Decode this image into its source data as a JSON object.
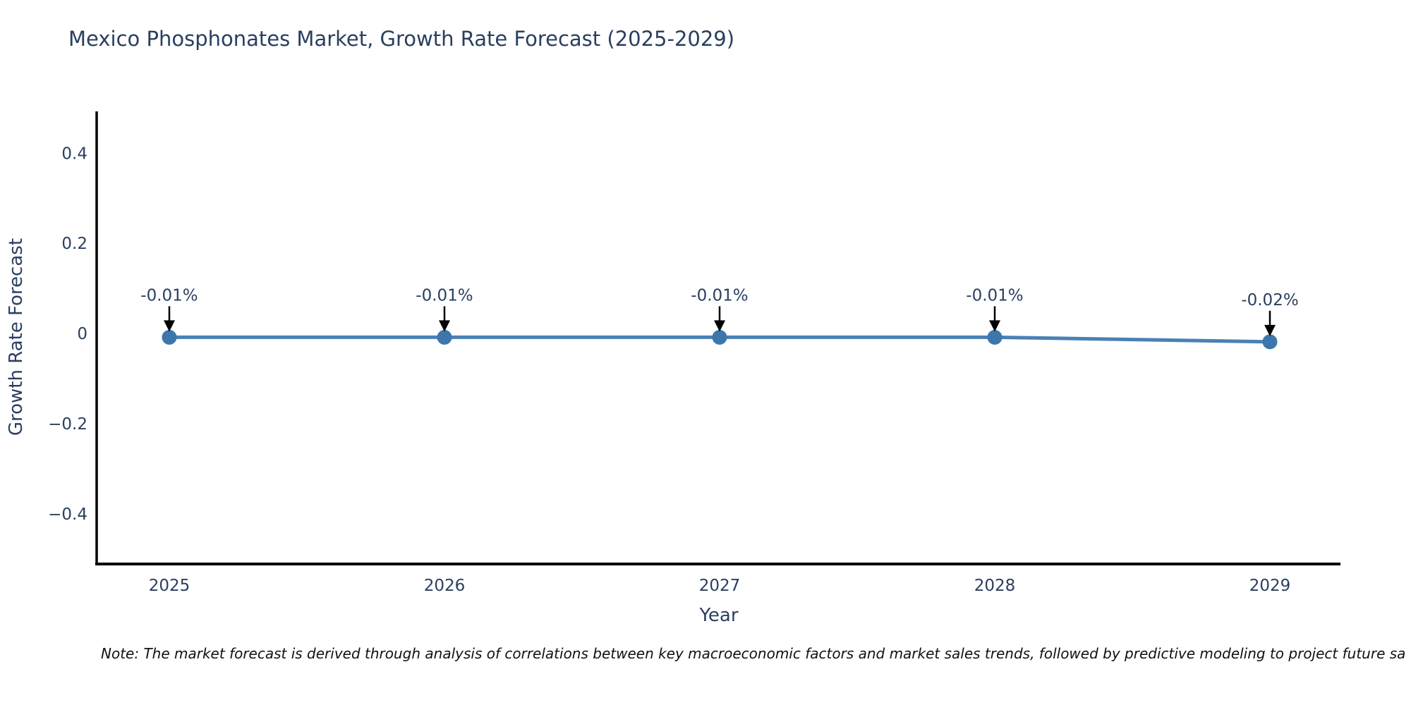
{
  "title": "Mexico Phosphonates Market, Growth Rate Forecast (2025-2029)",
  "note": "Note: The market forecast is derived through analysis of correlations between key macroeconomic factors and market sales trends, followed by predictive modeling to project future sa",
  "colors": {
    "title_text": "#2a3f5f",
    "tick_text": "#2a3f5f",
    "annotation_text": "#2a3f5f",
    "axis_line": "#000000",
    "series_line": "#4a80b4",
    "marker_fill": "#3c76ad",
    "arrow": "#000000",
    "note_text": "#111111",
    "background": "#ffffff"
  },
  "chart_data": {
    "type": "line",
    "title": "Mexico Phosphonates Market, Growth Rate Forecast (2025-2029)",
    "xlabel": "Year",
    "ylabel": "Growth Rate Forecast",
    "x": [
      2025,
      2026,
      2027,
      2028,
      2029
    ],
    "values": [
      -0.01,
      -0.01,
      -0.01,
      -0.01,
      -0.02
    ],
    "point_labels": [
      "-0.01%",
      "-0.01%",
      "-0.01%",
      "-0.01%",
      "-0.02%"
    ],
    "series_name": "Growth Rate Forecast",
    "xticks": [
      2025,
      2026,
      2027,
      2028,
      2029
    ],
    "xtick_labels": [
      "2025",
      "2026",
      "2027",
      "2028",
      "2029"
    ],
    "yticks": [
      0.4,
      0.2,
      0,
      -0.2,
      -0.4
    ],
    "ytick_labels": [
      "0.4",
      "0.2",
      "0",
      "−0.2",
      "−0.4"
    ],
    "xlim": [
      2024.7385,
      2029.2564
    ],
    "ylim": [
      -0.5129,
      0.4911
    ],
    "grid": false,
    "legend": false,
    "annotations_have_arrows": true
  }
}
